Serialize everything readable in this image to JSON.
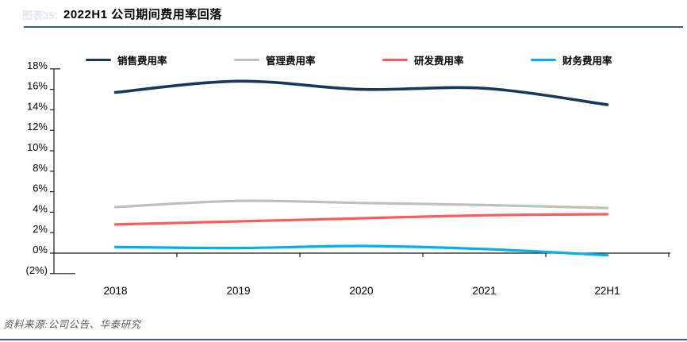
{
  "header": {
    "figure_label": "图表35:",
    "title": "2022H1 公司期间费用率回落"
  },
  "footer": {
    "source": "资料来源:公司公告、华泰研究"
  },
  "colors": {
    "accent_rule": "#2E5B9F",
    "axis": "#1a1a1a",
    "sales_line": "#17375E",
    "admin_line": "#BFBFBF",
    "rd_line": "#FB5B5B",
    "finance_line": "#00B0F0"
  },
  "chart_data": {
    "type": "line",
    "title": "2022H1 公司期间费用率回落",
    "categories": [
      "2018",
      "2019",
      "2020",
      "2021",
      "22H1"
    ],
    "series": [
      {
        "name": "销售费用率",
        "color": "#17375E",
        "values": [
          15.7,
          16.8,
          16.0,
          16.1,
          14.5
        ]
      },
      {
        "name": "管理费用率",
        "color": "#BFBFBF",
        "values": [
          4.5,
          5.1,
          4.9,
          4.7,
          4.4
        ]
      },
      {
        "name": "研发费用率",
        "color": "#FB5B5B",
        "values": [
          2.8,
          3.1,
          3.4,
          3.7,
          3.8
        ]
      },
      {
        "name": "财务费用率",
        "color": "#00B0F0",
        "values": [
          0.6,
          0.5,
          0.7,
          0.4,
          -0.2
        ]
      }
    ],
    "ylim": [
      -2,
      18
    ],
    "ytick_step": 2,
    "ytick_labels": [
      "18%",
      "16%",
      "14%",
      "12%",
      "10%",
      "8%",
      "6%",
      "4%",
      "2%",
      "0%",
      "(2%)"
    ],
    "xlabel": "",
    "ylabel": "",
    "legend_position": "top",
    "grid": false,
    "smooth": true
  }
}
